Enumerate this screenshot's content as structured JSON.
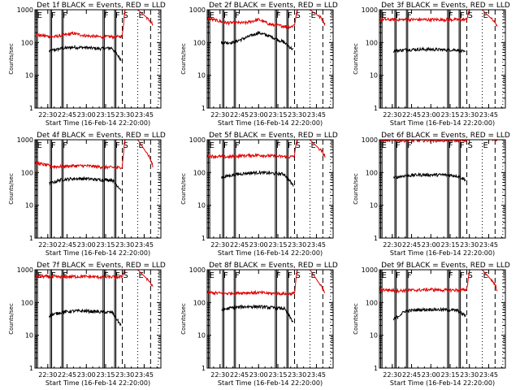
{
  "colors": {
    "events": "#000000",
    "lld": "#e00000",
    "axes": "#000000",
    "background": "#ffffff"
  },
  "y_axis_label": "Counts/sec",
  "x_axis_label": "Start Time (16-Feb-14 22:20:00)",
  "x_tick_labels": [
    "22:30",
    "22:45",
    "23:00",
    "23:15",
    "23:30",
    "23:45"
  ],
  "y_tick_labels": [
    "1",
    "10",
    "100",
    "1000"
  ],
  "marker_labels": {
    "E": "E",
    "F": "F",
    "S": "S"
  },
  "chart_data": [
    {
      "type": "line",
      "title": "Det 1f BLACK = Events, RED = LLD",
      "xlabel": "Start Time (16-Feb-14 22:20:00)",
      "ylabel": "Counts/sec",
      "x_range": [
        "22:20",
        "23:58"
      ],
      "ylim": [
        1,
        1000
      ],
      "y_scale": "log",
      "series": [
        {
          "name": "Events",
          "color": "#000000",
          "x": [
            "22:31",
            "22:40",
            "22:50",
            "23:00",
            "23:10",
            "23:20",
            "23:27"
          ],
          "values": [
            55,
            65,
            72,
            70,
            65,
            68,
            30
          ]
        },
        {
          "name": "LLD",
          "color": "#e00000",
          "x": [
            "22:20",
            "22:35",
            "22:50",
            "23:00",
            "23:10",
            "23:25",
            "23:28",
            "23:29",
            "23:30",
            "23:31",
            "23:40",
            "23:49",
            "23:52"
          ],
          "values": [
            170,
            150,
            190,
            160,
            150,
            150,
            160,
            400,
            1000,
            1000,
            1000,
            500,
            350
          ]
        }
      ]
    },
    {
      "type": "line",
      "title": "Det 2f BLACK = Events, RED = LLD",
      "xlabel": "Start Time (16-Feb-14 22:20:00)",
      "ylabel": "Counts/sec",
      "x_range": [
        "22:20",
        "23:58"
      ],
      "ylim": [
        1,
        1000
      ],
      "y_scale": "log",
      "series": [
        {
          "name": "Events",
          "color": "#000000",
          "x": [
            "22:31",
            "22:40",
            "22:50",
            "23:00",
            "23:10",
            "23:20",
            "23:27"
          ],
          "values": [
            100,
            100,
            140,
            200,
            150,
            100,
            60
          ]
        },
        {
          "name": "LLD",
          "color": "#e00000",
          "x": [
            "22:20",
            "22:35",
            "22:50",
            "23:00",
            "23:10",
            "23:25",
            "23:28",
            "23:29",
            "23:30",
            "23:31",
            "23:40",
            "23:49",
            "23:52"
          ],
          "values": [
            550,
            400,
            400,
            500,
            350,
            300,
            350,
            600,
            1000,
            1000,
            1000,
            550,
            350
          ]
        }
      ]
    },
    {
      "type": "line",
      "title": "Det 3f BLACK = Events, RED = LLD",
      "xlabel": "Start Time (16-Feb-14 22:20:00)",
      "ylabel": "Counts/sec",
      "x_range": [
        "22:20",
        "23:58"
      ],
      "ylim": [
        1,
        1000
      ],
      "y_scale": "log",
      "series": [
        {
          "name": "Events",
          "color": "#000000",
          "x": [
            "22:31",
            "22:40",
            "22:50",
            "23:00",
            "23:10",
            "23:20",
            "23:27"
          ],
          "values": [
            55,
            60,
            62,
            62,
            60,
            60,
            50
          ]
        },
        {
          "name": "LLD",
          "color": "#e00000",
          "x": [
            "22:20",
            "22:35",
            "22:50",
            "23:00",
            "23:10",
            "23:25",
            "23:28",
            "23:29",
            "23:30",
            "23:31",
            "23:40",
            "23:49",
            "23:52"
          ],
          "values": [
            500,
            500,
            500,
            500,
            500,
            500,
            500,
            800,
            1000,
            1000,
            1000,
            450,
            320
          ]
        }
      ]
    },
    {
      "type": "line",
      "title": "Det 4f BLACK = Events, RED = LLD",
      "xlabel": "Start Time (16-Feb-14 22:20:00)",
      "ylabel": "Counts/sec",
      "x_range": [
        "22:20",
        "23:58"
      ],
      "ylim": [
        1,
        1000
      ],
      "y_scale": "log",
      "series": [
        {
          "name": "Events",
          "color": "#000000",
          "x": [
            "22:31",
            "22:40",
            "22:50",
            "23:00",
            "23:10",
            "23:20",
            "23:27"
          ],
          "values": [
            45,
            60,
            65,
            65,
            60,
            60,
            30
          ]
        },
        {
          "name": "LLD",
          "color": "#e00000",
          "x": [
            "22:20",
            "22:35",
            "22:50",
            "23:00",
            "23:10",
            "23:25",
            "23:28",
            "23:29",
            "23:30",
            "23:31",
            "23:40",
            "23:49",
            "23:52"
          ],
          "values": [
            200,
            150,
            160,
            160,
            150,
            140,
            150,
            450,
            1000,
            1000,
            1000,
            300,
            150
          ]
        }
      ]
    },
    {
      "type": "line",
      "title": "Det 5f BLACK = Events, RED = LLD",
      "xlabel": "Start Time (16-Feb-14 22:20:00)",
      "ylabel": "Counts/sec",
      "x_range": [
        "22:20",
        "23:58"
      ],
      "ylim": [
        1,
        1000
      ],
      "y_scale": "log",
      "series": [
        {
          "name": "Events",
          "color": "#000000",
          "x": [
            "22:31",
            "22:40",
            "22:50",
            "23:00",
            "23:10",
            "23:20",
            "23:27"
          ],
          "values": [
            70,
            85,
            95,
            100,
            95,
            90,
            40
          ]
        },
        {
          "name": "LLD",
          "color": "#e00000",
          "x": [
            "22:20",
            "22:35",
            "22:50",
            "23:00",
            "23:10",
            "23:25",
            "23:28",
            "23:29",
            "23:30",
            "23:31",
            "23:40",
            "23:49",
            "23:52"
          ],
          "values": [
            320,
            300,
            330,
            340,
            320,
            300,
            320,
            700,
            1000,
            1000,
            1000,
            450,
            300
          ]
        }
      ]
    },
    {
      "type": "line",
      "title": "Det 6f BLACK = Events, RED = LLD",
      "xlabel": "Start Time (16-Feb-14 22:20:00)",
      "ylabel": "Counts/sec",
      "x_range": [
        "22:20",
        "23:58"
      ],
      "ylim": [
        1,
        1000
      ],
      "y_scale": "log",
      "series": [
        {
          "name": "Events",
          "color": "#000000",
          "x": [
            "22:31",
            "22:40",
            "22:50",
            "23:00",
            "23:10",
            "23:20",
            "23:27"
          ],
          "values": [
            70,
            80,
            85,
            85,
            85,
            80,
            60
          ]
        },
        {
          "name": "LLD",
          "color": "#e00000",
          "x": [
            "22:20",
            "22:35",
            "22:50",
            "23:00",
            "23:10",
            "23:25",
            "23:28",
            "23:29",
            "23:30",
            "23:31",
            "23:40",
            "23:49",
            "23:52"
          ],
          "values": [
            950,
            950,
            950,
            950,
            950,
            950,
            950,
            1000,
            1000,
            1000,
            1000,
            1000,
            1000
          ]
        }
      ]
    },
    {
      "type": "line",
      "title": "Det 7f BLACK = Events, RED = LLD",
      "xlabel": "Start Time (16-Feb-14 22:20:00)",
      "ylabel": "Counts/sec",
      "x_range": [
        "22:20",
        "23:58"
      ],
      "ylim": [
        1,
        1000
      ],
      "y_scale": "log",
      "series": [
        {
          "name": "Events",
          "color": "#000000",
          "x": [
            "22:31",
            "22:40",
            "22:50",
            "23:00",
            "23:10",
            "23:20",
            "23:27"
          ],
          "values": [
            40,
            50,
            55,
            55,
            52,
            50,
            20
          ]
        },
        {
          "name": "LLD",
          "color": "#e00000",
          "x": [
            "22:20",
            "22:35",
            "22:50",
            "23:00",
            "23:10",
            "23:25",
            "23:28",
            "23:29",
            "23:30",
            "23:31",
            "23:40",
            "23:49",
            "23:52"
          ],
          "values": [
            650,
            600,
            620,
            620,
            600,
            600,
            620,
            900,
            1000,
            1000,
            1000,
            450,
            280
          ]
        }
      ]
    },
    {
      "type": "line",
      "title": "Det 8f BLACK = Events, RED = LLD",
      "xlabel": "Start Time (16-Feb-14 22:20:00)",
      "ylabel": "Counts/sec",
      "x_range": [
        "22:20",
        "23:58"
      ],
      "ylim": [
        1,
        1000
      ],
      "y_scale": "log",
      "series": [
        {
          "name": "Events",
          "color": "#000000",
          "x": [
            "22:31",
            "22:40",
            "22:50",
            "23:00",
            "23:10",
            "23:20",
            "23:27"
          ],
          "values": [
            60,
            70,
            75,
            75,
            70,
            65,
            25
          ]
        },
        {
          "name": "LLD",
          "color": "#e00000",
          "x": [
            "22:20",
            "22:35",
            "22:50",
            "23:00",
            "23:10",
            "23:25",
            "23:28",
            "23:29",
            "23:30",
            "23:31",
            "23:40",
            "23:49",
            "23:52"
          ],
          "values": [
            200,
            190,
            200,
            200,
            190,
            185,
            190,
            500,
            1000,
            1000,
            1000,
            300,
            180
          ]
        }
      ]
    },
    {
      "type": "line",
      "title": "Det 9f BLACK = Events, RED = LLD",
      "xlabel": "Start Time (16-Feb-14 22:20:00)",
      "ylabel": "Counts/sec",
      "x_range": [
        "22:20",
        "23:58"
      ],
      "ylim": [
        1,
        1000
      ],
      "y_scale": "log",
      "series": [
        {
          "name": "Events",
          "color": "#000000",
          "x": [
            "22:31",
            "22:40",
            "22:50",
            "23:00",
            "23:10",
            "23:20",
            "23:27"
          ],
          "values": [
            30,
            55,
            60,
            62,
            60,
            58,
            40
          ]
        },
        {
          "name": "LLD",
          "color": "#e00000",
          "x": [
            "22:20",
            "22:35",
            "22:50",
            "23:00",
            "23:10",
            "23:25",
            "23:28",
            "23:29",
            "23:30",
            "23:31",
            "23:40",
            "23:49",
            "23:52"
          ],
          "values": [
            250,
            230,
            240,
            250,
            240,
            240,
            250,
            500,
            1000,
            1000,
            1000,
            400,
            230
          ]
        }
      ]
    }
  ],
  "markers": [
    {
      "time": "22:21",
      "label": "E",
      "style": "solid"
    },
    {
      "time": "22:22",
      "label": "",
      "style": "solid"
    },
    {
      "time": "22:32",
      "label": "F",
      "style": "solid"
    },
    {
      "time": "22:33",
      "label": "",
      "style": "solid"
    },
    {
      "time": "22:41",
      "label": "F",
      "style": "solid"
    },
    {
      "time": "22:42",
      "label": "",
      "style": "solid"
    },
    {
      "time": "23:13",
      "label": "F",
      "style": "solid"
    },
    {
      "time": "23:14",
      "label": "",
      "style": "solid"
    },
    {
      "time": "23:22",
      "label": "F",
      "style": "solid"
    },
    {
      "time": "23:23",
      "label": "",
      "style": "solid"
    },
    {
      "time": "23:28",
      "label": "S",
      "style": "dashed"
    },
    {
      "time": "23:40",
      "label": "E",
      "style": "dotted"
    },
    {
      "time": "23:50",
      "label": "",
      "style": "dashed"
    },
    {
      "time": "23:56",
      "label": "",
      "style": "dotted"
    }
  ]
}
